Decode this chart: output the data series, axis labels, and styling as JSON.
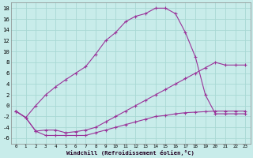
{
  "xlabel": "Windchill (Refroidissement éolien,°C)",
  "background_color": "#c8ecea",
  "grid_color": "#a8d8d4",
  "line_color": "#993399",
  "xlim": [
    -0.5,
    23.5
  ],
  "ylim": [
    -7,
    19
  ],
  "xticks": [
    0,
    1,
    2,
    3,
    4,
    5,
    6,
    7,
    8,
    9,
    10,
    11,
    12,
    13,
    14,
    15,
    16,
    17,
    18,
    19,
    20,
    21,
    22,
    23
  ],
  "yticks": [
    -6,
    -4,
    -2,
    0,
    2,
    4,
    6,
    8,
    10,
    12,
    14,
    16,
    18
  ],
  "curve_x": [
    0,
    1,
    2,
    3,
    4,
    5,
    6,
    7,
    8,
    9,
    10,
    11,
    12,
    13,
    14,
    15,
    16,
    17,
    18,
    19,
    20,
    21,
    22,
    23
  ],
  "curve_y": [
    -1,
    -2.2,
    0,
    2,
    3.5,
    4.8,
    6.0,
    7.2,
    9.5,
    12,
    13.5,
    15.5,
    16.5,
    17,
    18,
    18,
    17,
    13.5,
    9,
    2.0,
    -1.5,
    -1.5,
    -1.5,
    -1.5
  ],
  "mid_x": [
    0,
    1,
    2,
    3,
    4,
    5,
    6,
    7,
    8,
    9,
    10,
    11,
    12,
    13,
    14,
    15,
    16,
    17,
    18,
    19,
    20,
    21,
    22,
    23
  ],
  "mid_y": [
    -1,
    -2.2,
    -4.7,
    -4.5,
    -4.5,
    -5,
    -4.8,
    -4.5,
    -4,
    -3,
    -2,
    -1,
    0,
    1,
    2,
    3,
    4,
    5,
    6,
    7,
    8,
    7.5,
    7.5,
    7.5
  ],
  "flat_x": [
    0,
    1,
    2,
    3,
    4,
    5,
    6,
    7,
    8,
    9,
    10,
    11,
    12,
    13,
    14,
    15,
    16,
    17,
    18,
    19,
    20,
    21,
    22,
    23
  ],
  "flat_y": [
    -1,
    -2.2,
    -4.7,
    -5.5,
    -5.5,
    -5.5,
    -5.5,
    -5.5,
    -5,
    -4.5,
    -4,
    -3.5,
    -3,
    -2.5,
    -2,
    -1.8,
    -1.5,
    -1.3,
    -1.2,
    -1.1,
    -1,
    -1,
    -1,
    -1
  ]
}
